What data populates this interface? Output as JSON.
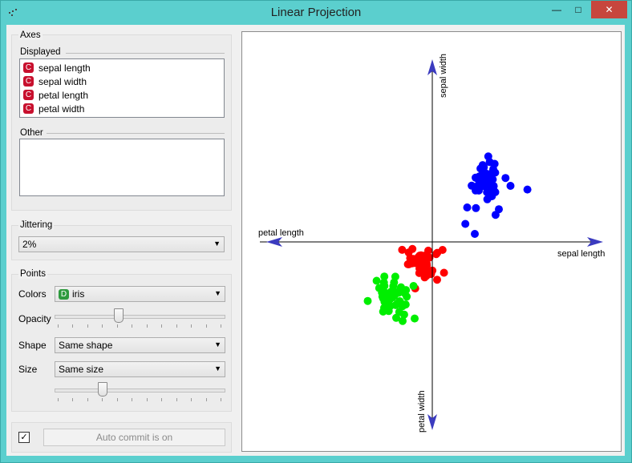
{
  "window": {
    "title": "Linear Projection",
    "controls": {
      "minimize": "—",
      "maximize": "□",
      "close": "✕"
    }
  },
  "axes_group": {
    "title": "Axes",
    "displayed_label": "Displayed",
    "displayed_items": [
      {
        "badge": "C",
        "label": "sepal length"
      },
      {
        "badge": "C",
        "label": "sepal width"
      },
      {
        "badge": "C",
        "label": "petal length"
      },
      {
        "badge": "C",
        "label": "petal width"
      }
    ],
    "other_label": "Other"
  },
  "jittering": {
    "title": "Jittering",
    "value": "2%"
  },
  "points": {
    "title": "Points",
    "colors_label": "Colors",
    "colors_badge": "D",
    "colors_value": "iris",
    "opacity_label": "Opacity",
    "opacity_fraction": 0.37,
    "shape_label": "Shape",
    "shape_value": "Same shape",
    "size_label": "Size",
    "size_value": "Same size",
    "size_fraction": 0.27
  },
  "commit": {
    "checked": true,
    "check_mark": "✓",
    "label": "Auto commit is on"
  },
  "plot": {
    "axis_labels": {
      "sepal_length": "sepal length",
      "sepal_width": "sepal width",
      "petal_length": "petal length",
      "petal_width": "petal width"
    },
    "colors": {
      "blue": "#0000ff",
      "red": "#ff0000",
      "green": "#00ee00",
      "axis": "#000000",
      "arrow": "#3b3bbf"
    }
  }
}
